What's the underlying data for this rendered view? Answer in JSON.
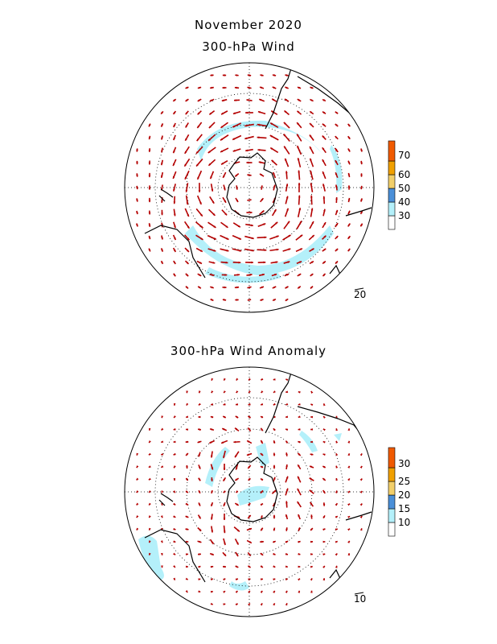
{
  "title": "November 2020",
  "panels": [
    {
      "subtitle": "300-hPa Wind",
      "reference_vector": "20",
      "colorbar": {
        "labels": [
          "30",
          "40",
          "50",
          "60",
          "70"
        ],
        "colors": [
          "#ffffff",
          "#b4f0fa",
          "#4a8fd8",
          "#f2cf6a",
          "#f0a000",
          "#f05a00"
        ]
      }
    },
    {
      "subtitle": "300-hPa Wind Anomaly",
      "reference_vector": "10",
      "colorbar": {
        "labels": [
          "10",
          "15",
          "20",
          "25",
          "30"
        ],
        "colors": [
          "#ffffff",
          "#b4f0fa",
          "#4a8fd8",
          "#f2cf6a",
          "#f0a000",
          "#f05a00"
        ]
      }
    }
  ],
  "colors": {
    "vector": "#b40000",
    "shade": "#b4f0fa",
    "coast": "#000000"
  }
}
